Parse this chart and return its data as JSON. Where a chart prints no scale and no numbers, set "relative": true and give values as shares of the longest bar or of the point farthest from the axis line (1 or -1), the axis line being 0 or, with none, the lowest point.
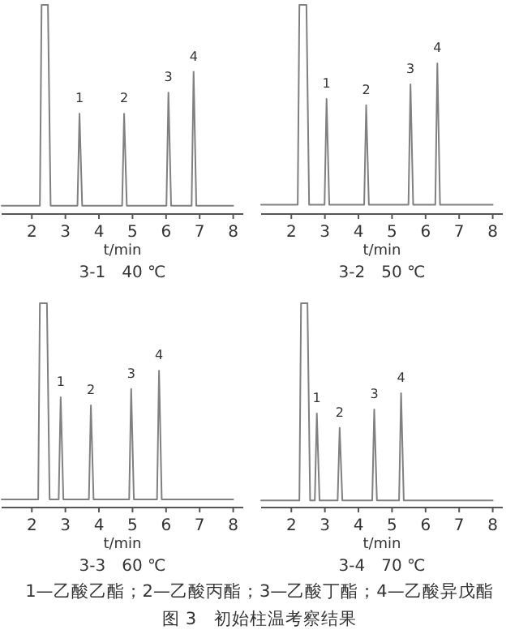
{
  "chart_data": [
    {
      "type": "line",
      "title": "3-1　40 ℃",
      "xlabel": "t/min",
      "relative": true,
      "xlim": [
        1.1,
        8.3
      ],
      "xticks": [
        2,
        3,
        4,
        5,
        6,
        7,
        8
      ],
      "series": [
        {
          "color": "#808080",
          "x": [
            1.1,
            2.24,
            2.29,
            2.48,
            2.56,
            3.36,
            3.42,
            3.5,
            4.69,
            4.75,
            4.83,
            6.01,
            6.07,
            6.15,
            6.76,
            6.82,
            6.9,
            8.0
          ],
          "values": [
            0.04,
            0.04,
            1,
            1,
            0.04,
            0.04,
            0.48,
            0.04,
            0.04,
            0.48,
            0.04,
            0.04,
            0.58,
            0.04,
            0.04,
            0.68,
            0.04,
            0.04
          ]
        }
      ],
      "annotations": [
        {
          "text": "1",
          "x": 3.42,
          "y": 0.48
        },
        {
          "text": "2",
          "x": 4.75,
          "y": 0.48
        },
        {
          "text": "3",
          "x": 6.07,
          "y": 0.58
        },
        {
          "text": "4",
          "x": 6.82,
          "y": 0.68
        }
      ]
    },
    {
      "type": "line",
      "title": "3-2　50 ℃",
      "xlabel": "t/min",
      "relative": true,
      "xlim": [
        1.1,
        8.3
      ],
      "xticks": [
        2,
        3,
        4,
        5,
        6,
        7,
        8
      ],
      "series": [
        {
          "color": "#808080",
          "x": [
            1.1,
            2.19,
            2.24,
            2.45,
            2.53,
            2.99,
            3.05,
            3.13,
            4.17,
            4.23,
            4.31,
            5.49,
            5.55,
            5.63,
            6.29,
            6.35,
            6.43,
            8.0
          ],
          "values": [
            0.045,
            0.045,
            1,
            1,
            0.045,
            0.045,
            0.55,
            0.045,
            0.045,
            0.52,
            0.045,
            0.045,
            0.62,
            0.045,
            0.045,
            0.72,
            0.045,
            0.045
          ]
        }
      ],
      "annotations": [
        {
          "text": "1",
          "x": 3.05,
          "y": 0.55
        },
        {
          "text": "2",
          "x": 4.23,
          "y": 0.52
        },
        {
          "text": "3",
          "x": 5.55,
          "y": 0.62
        },
        {
          "text": "4",
          "x": 6.35,
          "y": 0.72
        }
      ]
    },
    {
      "type": "line",
      "title": "3-3　60 ℃",
      "xlabel": "t/min",
      "relative": true,
      "xlim": [
        1.1,
        8.3
      ],
      "xticks": [
        2,
        3,
        4,
        5,
        6,
        7,
        8
      ],
      "series": [
        {
          "color": "#808080",
          "x": [
            1.1,
            2.19,
            2.24,
            2.45,
            2.53,
            2.8,
            2.86,
            2.94,
            3.7,
            3.76,
            3.84,
            4.9,
            4.96,
            5.04,
            5.73,
            5.79,
            5.87,
            8.0
          ],
          "values": [
            0.04,
            0.04,
            1,
            1,
            0.04,
            0.04,
            0.54,
            0.04,
            0.04,
            0.5,
            0.04,
            0.04,
            0.58,
            0.04,
            0.04,
            0.67,
            0.04,
            0.04
          ]
        }
      ],
      "annotations": [
        {
          "text": "1",
          "x": 2.86,
          "y": 0.54
        },
        {
          "text": "2",
          "x": 3.76,
          "y": 0.5
        },
        {
          "text": "3",
          "x": 4.96,
          "y": 0.58
        },
        {
          "text": "4",
          "x": 5.79,
          "y": 0.67
        }
      ]
    },
    {
      "type": "line",
      "title": "3-4　70 ℃",
      "xlabel": "t/min",
      "relative": true,
      "xlim": [
        1.1,
        8.3
      ],
      "xticks": [
        2,
        3,
        4,
        5,
        6,
        7,
        8
      ],
      "series": [
        {
          "color": "#808080",
          "x": [
            1.1,
            2.24,
            2.29,
            2.48,
            2.56,
            2.7,
            2.76,
            2.84,
            3.38,
            3.44,
            3.52,
            4.41,
            4.47,
            4.55,
            5.21,
            5.27,
            5.35,
            8.0
          ],
          "values": [
            0.035,
            0.035,
            1,
            1,
            0.035,
            0.035,
            0.46,
            0.035,
            0.035,
            0.39,
            0.035,
            0.035,
            0.48,
            0.035,
            0.035,
            0.56,
            0.035,
            0.035
          ]
        }
      ],
      "annotations": [
        {
          "text": "1",
          "x": 2.76,
          "y": 0.46
        },
        {
          "text": "2",
          "x": 3.44,
          "y": 0.39
        },
        {
          "text": "3",
          "x": 4.47,
          "y": 0.48
        },
        {
          "text": "4",
          "x": 5.27,
          "y": 0.56
        }
      ]
    },
    {
      "type": "other",
      "annotations": [
        "1—乙酸乙酯；2—乙酸丙酯；3—乙酸丁酯；4—乙酸异戊酯",
        "图 3　初始柱温考察结果"
      ]
    }
  ]
}
